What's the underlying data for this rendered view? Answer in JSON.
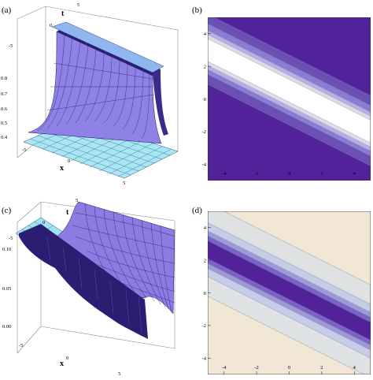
{
  "panels": [
    {
      "id": "a",
      "label": "(a)",
      "kind": "surface3d",
      "x_axis_label": "x",
      "t_axis_label": "t",
      "x_ticks": [
        "-5",
        "0",
        "5"
      ],
      "t_ticks": [
        "-5",
        "0",
        "5"
      ],
      "z_ticks": [
        "0.4",
        "0.5",
        "0.6",
        "0.7",
        "0.8"
      ],
      "colors": {
        "surface": "#8f82e6",
        "wall": "#2a1d72",
        "floor": "#a9e6f4",
        "top": "#8fb6ee"
      }
    },
    {
      "id": "b",
      "label": "(b)",
      "kind": "contour",
      "x_ticks": [
        "-4",
        "-2",
        "0",
        "2",
        "4"
      ],
      "y_ticks": [
        "4",
        "2",
        "0",
        "-2",
        "-4"
      ],
      "x_range": [
        -5,
        5
      ],
      "y_range": [
        -5,
        5
      ],
      "line_slope": -0.5,
      "background": "#52229a",
      "bands": [
        {
          "from": -1.6,
          "to": 2.7,
          "color": "#6a50b4"
        },
        {
          "from": -1.0,
          "to": 2.1,
          "color": "#8a7cd4"
        },
        {
          "from": -0.7,
          "to": 1.7,
          "color": "#b4b0e6"
        },
        {
          "from": -0.45,
          "to": 1.45,
          "color": "#dcdcee"
        },
        {
          "from": -0.2,
          "to": 1.2,
          "color": "#ffffff"
        }
      ]
    },
    {
      "id": "c",
      "label": "(c)",
      "kind": "surface3d",
      "x_axis_label": "x",
      "t_axis_label": "t",
      "x_ticks": [
        "-5",
        "0",
        "5"
      ],
      "t_ticks": [
        "-5",
        "0",
        "5"
      ],
      "z_ticks": [
        "0.00",
        "0.05",
        "0.10"
      ],
      "colors": {
        "surface": "#8a7ce0",
        "wall": "#2a1d72",
        "floor": "#9fe4f2"
      }
    },
    {
      "id": "d",
      "label": "(d)",
      "kind": "contour",
      "x_ticks": [
        "-4",
        "-2",
        "0",
        "2",
        "4"
      ],
      "y_ticks": [
        "4",
        "2",
        "0",
        "-2",
        "-4"
      ],
      "x_range": [
        -5,
        5
      ],
      "y_range": [
        -5,
        5
      ],
      "line_slope": -0.5,
      "background": "#f2e6d6",
      "bands": [
        {
          "from": -2.7,
          "to": 3.0,
          "color": "#dfe2e2"
        },
        {
          "from": -1.5,
          "to": 1.8,
          "color": "#c4cce6"
        },
        {
          "from": -1.0,
          "to": 1.3,
          "color": "#9c9ad8"
        },
        {
          "from": -0.7,
          "to": 1.0,
          "color": "#7a62c6"
        },
        {
          "from": -0.4,
          "to": 0.7,
          "color": "#52229a"
        }
      ]
    }
  ]
}
